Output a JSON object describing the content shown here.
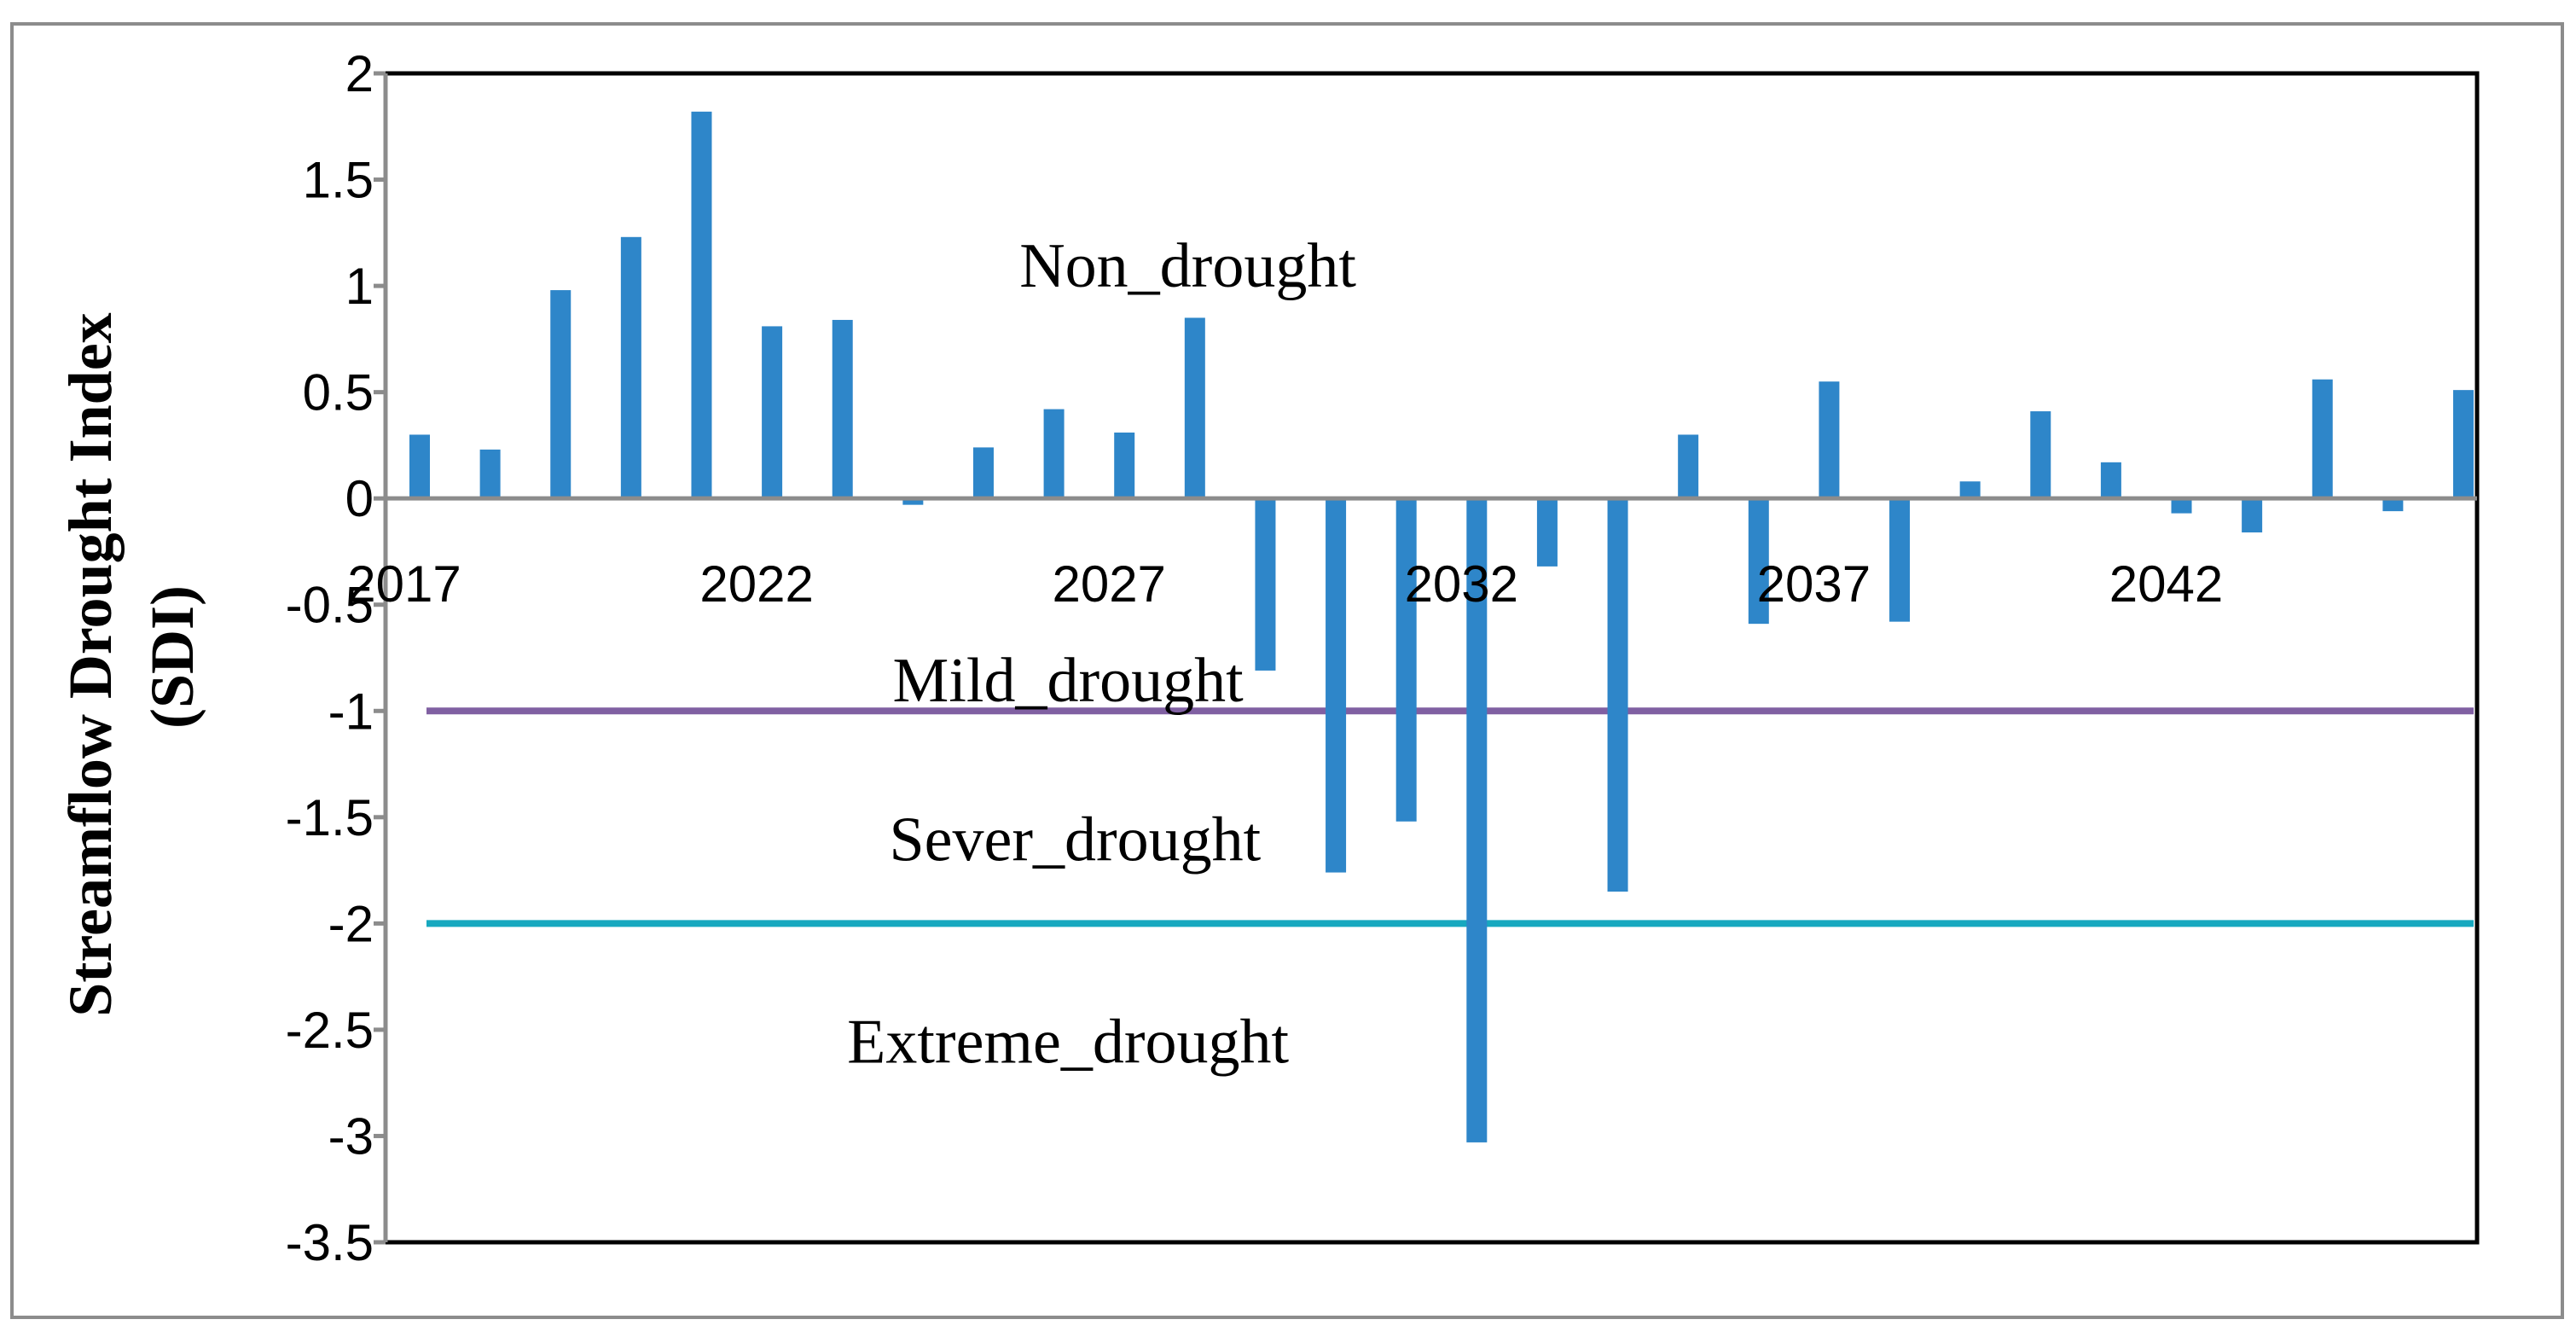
{
  "chart_data": {
    "type": "bar",
    "title": "",
    "xlabel": "",
    "ylabel_lines": [
      "Streamflow Drought Index",
      "(SDI)"
    ],
    "ylim": [
      -3.5,
      2
    ],
    "yticks": [
      2,
      1.5,
      1,
      0.5,
      0,
      -0.5,
      -1,
      -1.5,
      -2,
      -2.5,
      -3,
      -3.5
    ],
    "ytick_labels": [
      "2",
      "1.5",
      "1",
      "0.5",
      "0",
      "-0.5",
      "-1",
      "-1.5",
      "-2",
      "-2.5",
      "-3",
      "-3.5"
    ],
    "x": [
      2017,
      2018,
      2019,
      2020,
      2021,
      2022,
      2023,
      2024,
      2025,
      2026,
      2027,
      2028,
      2029,
      2030,
      2031,
      2032,
      2033,
      2034,
      2035,
      2036,
      2037,
      2038,
      2039,
      2040,
      2041,
      2042,
      2043,
      2044,
      2045,
      2046
    ],
    "xtick_labels": [
      "2017",
      "2022",
      "2027",
      "2032",
      "2037",
      "2042"
    ],
    "xtick_years": [
      2017,
      2022,
      2027,
      2032,
      2037,
      2042
    ],
    "values": [
      0.3,
      0.23,
      0.98,
      1.23,
      1.82,
      0.81,
      0.84,
      -0.03,
      0.24,
      0.42,
      0.31,
      0.85,
      -0.81,
      -1.76,
      -1.52,
      -3.03,
      -0.32,
      -1.85,
      0.3,
      -0.59,
      0.55,
      -0.58,
      0.08,
      0.41,
      0.17,
      -0.07,
      -0.16,
      0.56,
      -0.06,
      0.51
    ],
    "bar_color": "#2E86C9",
    "threshold_lines": [
      {
        "name": "Mild drought threshold",
        "value": -1,
        "color": "#8060A2"
      },
      {
        "name": "Severe drought threshold",
        "value": -2,
        "color": "#17A8BF"
      }
    ],
    "zone_labels": [
      {
        "text": "Non_drought",
        "year": 2027.9,
        "y": 1.1
      },
      {
        "text": "Mild_drought",
        "year": 2026.2,
        "y": -0.85
      },
      {
        "text": "Sever_drought",
        "year": 2026.3,
        "y": -1.6
      },
      {
        "text": "Extreme_drought",
        "year": 2026.2,
        "y": -2.55
      }
    ]
  }
}
